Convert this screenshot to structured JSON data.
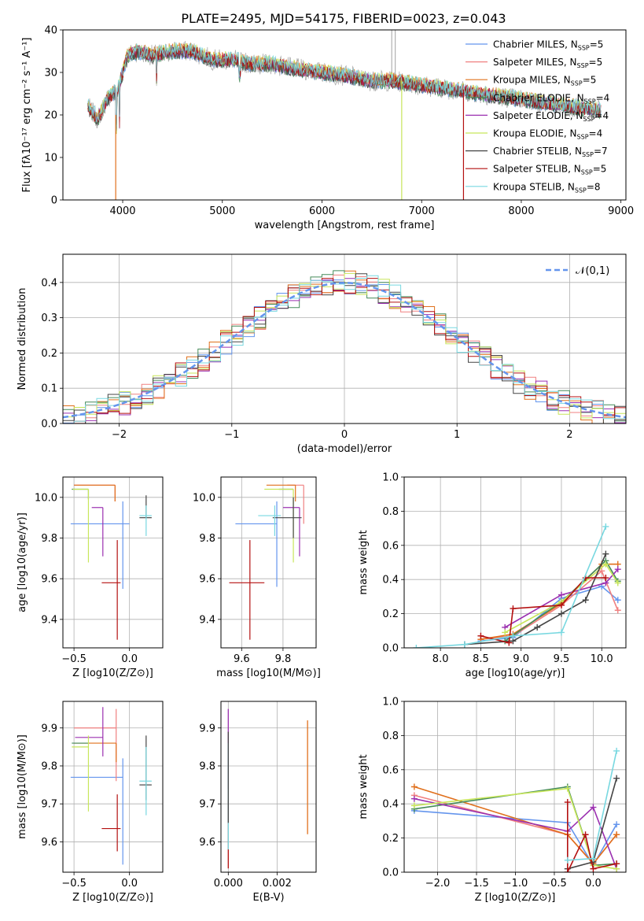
{
  "figure_title": "PLATE=2495, MJD=54175, FIBERID=0023, z=0.043",
  "series": [
    {
      "name": "Chabrier MILES",
      "nssp": "5",
      "color": "#6495ed"
    },
    {
      "name": "Salpeter MILES",
      "nssp": "5",
      "color": "#f08080"
    },
    {
      "name": "Kroupa MILES",
      "nssp": "5",
      "color": "#e0701c"
    },
    {
      "name": "Chabrier ELODIE",
      "nssp": "4",
      "color": "#458b5a"
    },
    {
      "name": "Salpeter ELODIE",
      "nssp": "4",
      "color": "#9b30b0"
    },
    {
      "name": "Kroupa ELODIE",
      "nssp": "4",
      "color": "#c8e65a"
    },
    {
      "name": "Chabrier STELIB",
      "nssp": "7",
      "color": "#454545"
    },
    {
      "name": "Salpeter STELIB",
      "nssp": "5",
      "color": "#b41010"
    },
    {
      "name": "Kroupa STELIB",
      "nssp": "8",
      "color": "#78d8e0"
    }
  ],
  "chart_data": [
    {
      "id": "spectrum",
      "type": "line",
      "xlabel": "wavelength [Angstrom, rest frame]",
      "ylabel": "Flux [fλ10⁻¹⁷ erg cm⁻² s⁻¹ A⁻¹]",
      "xlim": [
        3400,
        9050
      ],
      "ylim": [
        0,
        40
      ],
      "xticks": [
        4000,
        5000,
        6000,
        7000,
        8000,
        9000
      ],
      "yticks": [
        0,
        10,
        20,
        30,
        40
      ],
      "grid": false,
      "legend": "right",
      "continuum": {
        "x": [
          3650,
          3750,
          3850,
          3950,
          4050,
          4150,
          4300,
          4500,
          4700,
          4900,
          5100,
          5300,
          5500,
          5700,
          6000,
          6300,
          6500,
          6700,
          7000,
          7300,
          7600,
          7900,
          8200,
          8500,
          8800
        ],
        "y": [
          22,
          19,
          24,
          26,
          34,
          35,
          34,
          35,
          35,
          33,
          33,
          32,
          32,
          31,
          30,
          29,
          28,
          28,
          27,
          26,
          25,
          24,
          23,
          22,
          21
        ]
      },
      "data_color": "#b0b0b0"
    },
    {
      "id": "residuals",
      "type": "line",
      "xlabel": "(data-model)/error",
      "ylabel": "Normed distribution",
      "xlim": [
        -2.5,
        2.5
      ],
      "ylim": [
        0,
        0.48
      ],
      "xticks": [
        -2,
        -1,
        0,
        1,
        2
      ],
      "yticks": [
        0.0,
        0.1,
        0.2,
        0.3,
        0.4
      ],
      "grid": true,
      "legend": "top-right",
      "legend_label": "𝒩(0,1)",
      "gauss_color": "#6495ed"
    },
    {
      "id": "age_vs_Z",
      "type": "scatter",
      "xlabel": "Z [log10(Z/Z⊙)]",
      "ylabel": "age  [log10(age/yr)]",
      "xlim": [
        -0.6,
        0.3
      ],
      "ylim": [
        9.26,
        10.1
      ],
      "xticks": [
        -0.5,
        0.0
      ],
      "yticks": [
        9.4,
        9.6,
        9.8,
        10.0
      ],
      "grid": true,
      "points": [
        {
          "s": 0,
          "x": -0.06,
          "y": 9.87,
          "xe": [
            0.47,
            0.06
          ],
          "ye": [
            0.32,
            0.11
          ]
        },
        {
          "s": 1,
          "x": -0.13,
          "y": 10.06,
          "xe": [
            0.37,
            0.0
          ],
          "ye": [
            0.08,
            0.0
          ]
        },
        {
          "s": 2,
          "x": -0.13,
          "y": 10.06,
          "xe": [
            0.37,
            0.0
          ],
          "ye": [
            0.08,
            0.0
          ]
        },
        {
          "s": 3,
          "x": -0.37,
          "y": 10.04,
          "xe": [
            0.15,
            0.0
          ],
          "ye": [
            0.05,
            0.0
          ]
        },
        {
          "s": 4,
          "x": -0.24,
          "y": 9.95,
          "xe": [
            0.1,
            0.0
          ],
          "ye": [
            0.24,
            0.0
          ]
        },
        {
          "s": 5,
          "x": -0.37,
          "y": 10.04,
          "xe": [
            0.14,
            0.0
          ],
          "ye": [
            0.36,
            0.0
          ]
        },
        {
          "s": 6,
          "x": 0.15,
          "y": 9.9,
          "xe": [
            0.06,
            0.05
          ],
          "ye": [
            0.0,
            0.11
          ]
        },
        {
          "s": 7,
          "x": -0.11,
          "y": 9.58,
          "xe": [
            0.14,
            0.03
          ],
          "ye": [
            0.28,
            0.21
          ]
        },
        {
          "s": 8,
          "x": 0.15,
          "y": 9.91,
          "xe": [
            0.06,
            0.05
          ],
          "ye": [
            0.1,
            0.05
          ]
        }
      ]
    },
    {
      "id": "age_vs_mass",
      "type": "scatter",
      "xlabel": "mass [log10(M/M⊙)]",
      "ylabel": "",
      "xlim": [
        9.5,
        9.96
      ],
      "ylim": [
        9.26,
        10.1
      ],
      "xticks": [
        9.6,
        9.8
      ],
      "yticks": [
        9.4,
        9.6,
        9.8,
        10.0
      ],
      "grid": true,
      "points": [
        {
          "s": 0,
          "x": 9.77,
          "y": 9.87,
          "xe": [
            0.2,
            0.0
          ],
          "ye": [
            0.31,
            0.11
          ]
        },
        {
          "s": 1,
          "x": 9.9,
          "y": 10.06,
          "xe": [
            0.08,
            0.0
          ],
          "ye": [
            0.19,
            0.0
          ]
        },
        {
          "s": 2,
          "x": 9.86,
          "y": 10.06,
          "xe": [
            0.14,
            0.0
          ],
          "ye": [
            0.08,
            0.0
          ]
        },
        {
          "s": 3,
          "x": 9.85,
          "y": 10.04,
          "xe": [
            0.07,
            0.0
          ],
          "ye": [
            0.0,
            0.0
          ]
        },
        {
          "s": 4,
          "x": 9.88,
          "y": 9.95,
          "xe": [
            0.08,
            0.0
          ],
          "ye": [
            0.24,
            0.0
          ]
        },
        {
          "s": 5,
          "x": 9.85,
          "y": 10.04,
          "xe": [
            0.14,
            0.0
          ],
          "ye": [
            0.36,
            0.0
          ]
        },
        {
          "s": 6,
          "x": 9.85,
          "y": 9.9,
          "xe": [
            0.1,
            0.04
          ],
          "ye": [
            0.1,
            0.1
          ]
        },
        {
          "s": 7,
          "x": 9.64,
          "y": 9.58,
          "xe": [
            0.1,
            0.07
          ],
          "ye": [
            0.28,
            0.21
          ]
        },
        {
          "s": 8,
          "x": 9.76,
          "y": 9.91,
          "xe": [
            0.08,
            0.03
          ],
          "ye": [
            0.1,
            0.05
          ]
        }
      ]
    },
    {
      "id": "weight_vs_age",
      "type": "line",
      "xlabel": "age  [log10(age/yr)]",
      "ylabel": "mass weight",
      "xlim": [
        7.55,
        10.3
      ],
      "ylim": [
        0,
        1
      ],
      "xticks": [
        8.0,
        8.5,
        9.0,
        9.5,
        10.0
      ],
      "yticks": [
        0.0,
        0.2,
        0.4,
        0.6,
        0.8,
        1.0
      ],
      "grid": true,
      "lines": [
        {
          "s": 0,
          "x": [
            8.5,
            8.9,
            9.5,
            10.0,
            10.2
          ],
          "y": [
            0.04,
            0.06,
            0.29,
            0.36,
            0.28
          ]
        },
        {
          "s": 1,
          "x": [
            8.5,
            8.9,
            9.5,
            10.0,
            10.2
          ],
          "y": [
            0.05,
            0.07,
            0.25,
            0.45,
            0.22
          ]
        },
        {
          "s": 2,
          "x": [
            8.5,
            8.9,
            9.5,
            10.0,
            10.2
          ],
          "y": [
            0.05,
            0.08,
            0.26,
            0.49,
            0.49
          ]
        },
        {
          "s": 3,
          "x": [
            8.8,
            9.5,
            10.05,
            10.2
          ],
          "y": [
            0.04,
            0.27,
            0.51,
            0.39
          ]
        },
        {
          "s": 4,
          "x": [
            8.8,
            9.5,
            10.05,
            10.2
          ],
          "y": [
            0.12,
            0.31,
            0.38,
            0.46
          ]
        },
        {
          "s": 5,
          "x": [
            8.8,
            9.5,
            10.05,
            10.2
          ],
          "y": [
            0.09,
            0.27,
            0.49,
            0.38
          ]
        },
        {
          "s": 6,
          "x": [
            8.3,
            8.9,
            9.2,
            9.5,
            9.8,
            10.05
          ],
          "y": [
            0.02,
            0.04,
            0.12,
            0.2,
            0.28,
            0.55
          ]
        },
        {
          "s": 7,
          "x": [
            8.5,
            8.85,
            8.9,
            9.5,
            9.8,
            10.05
          ],
          "y": [
            0.07,
            0.03,
            0.23,
            0.25,
            0.41,
            0.41
          ]
        },
        {
          "s": 8,
          "x": [
            7.7,
            8.3,
            8.9,
            9.5,
            10.05
          ],
          "y": [
            0.0,
            0.02,
            0.07,
            0.09,
            0.71
          ]
        }
      ]
    },
    {
      "id": "mass_vs_Z",
      "type": "scatter",
      "xlabel": "Z [log10(Z/Z⊙)]",
      "ylabel": "mass [log10(M/M⊙)]",
      "xlim": [
        -0.6,
        0.3
      ],
      "ylim": [
        9.52,
        9.97
      ],
      "xticks": [
        -0.5,
        0.0
      ],
      "yticks": [
        9.6,
        9.7,
        9.8,
        9.9
      ],
      "grid": true,
      "points": [
        {
          "s": 0,
          "x": -0.06,
          "y": 9.77,
          "xe": [
            0.47,
            0.0
          ],
          "ye": [
            0.23,
            0.05
          ]
        },
        {
          "s": 1,
          "x": -0.12,
          "y": 9.9,
          "xe": [
            0.38,
            0.0
          ],
          "ye": [
            0.14,
            0.05
          ]
        },
        {
          "s": 2,
          "x": -0.12,
          "y": 9.86,
          "xe": [
            0.38,
            0.0
          ],
          "ye": [
            0.05,
            0.0
          ]
        },
        {
          "s": 3,
          "x": -0.37,
          "y": 9.86,
          "xe": [
            0.15,
            0.0
          ],
          "ye": [
            0.0,
            0.0
          ]
        },
        {
          "s": 4,
          "x": -0.24,
          "y": 9.875,
          "xe": [
            0.25,
            0.0
          ],
          "ye": [
            0.05,
            0.08
          ]
        },
        {
          "s": 5,
          "x": -0.37,
          "y": 9.85,
          "xe": [
            0.15,
            0.0
          ],
          "ye": [
            0.17,
            0.03
          ]
        },
        {
          "s": 6,
          "x": 0.15,
          "y": 9.75,
          "xe": [
            0.06,
            0.05
          ],
          "ye": [
            0.04,
            0.13
          ]
        },
        {
          "s": 7,
          "x": -0.11,
          "y": 9.635,
          "xe": [
            0.14,
            0.03
          ],
          "ye": [
            0.06,
            0.09
          ]
        },
        {
          "s": 8,
          "x": 0.15,
          "y": 9.76,
          "xe": [
            0.06,
            0.05
          ],
          "ye": [
            0.09,
            0.09
          ]
        }
      ]
    },
    {
      "id": "mass_vs_ebv",
      "type": "scatter",
      "xlabel": "E(B-V)",
      "ylabel": "",
      "xlim": [
        -0.0003,
        0.0036
      ],
      "ylim": [
        9.52,
        9.97
      ],
      "xticks": [
        0.0,
        0.002
      ],
      "xtick_labels": [
        "0.000",
        "0.002"
      ],
      "yticks": [
        9.6,
        9.7,
        9.8,
        9.9
      ],
      "grid": true,
      "bars": [
        {
          "s": 4,
          "x": 0.0,
          "y0": 9.74,
          "y1": 9.95
        },
        {
          "s": 7,
          "x": 0.0,
          "y0": 9.53,
          "y1": 9.71
        },
        {
          "s": 8,
          "x": 0.0,
          "y0": 9.58,
          "y1": 9.86
        },
        {
          "s": 6,
          "x": 0.0,
          "y0": 9.65,
          "y1": 9.89
        },
        {
          "s": 2,
          "x": 0.00325,
          "y0": 9.62,
          "y1": 9.92
        }
      ]
    },
    {
      "id": "weight_vs_Z",
      "type": "line",
      "xlabel": "Z [log10(Z/Z⊙)]",
      "ylabel": "mass weight",
      "xlim": [
        -2.43,
        0.42
      ],
      "ylim": [
        0,
        1
      ],
      "xticks": [
        -2.0,
        -1.5,
        -1.0,
        -0.5,
        0.0
      ],
      "yticks": [
        0.0,
        0.2,
        0.4,
        0.6,
        0.8,
        1.0
      ],
      "grid": true,
      "lines": [
        {
          "s": 0,
          "x": [
            -2.3,
            -0.33,
            0.0,
            0.3
          ],
          "y": [
            0.36,
            0.29,
            0.04,
            0.28
          ]
        },
        {
          "s": 1,
          "x": [
            -2.3,
            -0.33,
            0.0,
            0.3
          ],
          "y": [
            0.45,
            0.22,
            0.05,
            0.22
          ]
        },
        {
          "s": 2,
          "x": [
            -2.3,
            -0.33,
            0.0,
            0.3
          ],
          "y": [
            0.5,
            0.22,
            0.05,
            0.22
          ]
        },
        {
          "s": 3,
          "x": [
            -2.3,
            -0.33,
            0.0,
            0.3
          ],
          "y": [
            0.37,
            0.5,
            0.04,
            0.05
          ]
        },
        {
          "s": 4,
          "x": [
            -2.3,
            -0.33,
            0.0,
            0.3
          ],
          "y": [
            0.43,
            0.24,
            0.38,
            0.02
          ]
        },
        {
          "s": 5,
          "x": [
            -2.3,
            -0.33,
            0.0,
            0.3
          ],
          "y": [
            0.39,
            0.49,
            0.04,
            0.02
          ]
        },
        {
          "s": 6,
          "x": [
            -0.33,
            0.0,
            0.3
          ],
          "y": [
            0.02,
            0.06,
            0.55
          ]
        },
        {
          "s": 7,
          "x": [
            -0.33,
            -0.33,
            -0.1,
            0.0,
            0.3
          ],
          "y": [
            0.41,
            0.0,
            0.22,
            0.02,
            0.05
          ]
        },
        {
          "s": 8,
          "x": [
            -0.33,
            0.0,
            0.3
          ],
          "y": [
            0.07,
            0.08,
            0.71
          ]
        }
      ]
    }
  ]
}
